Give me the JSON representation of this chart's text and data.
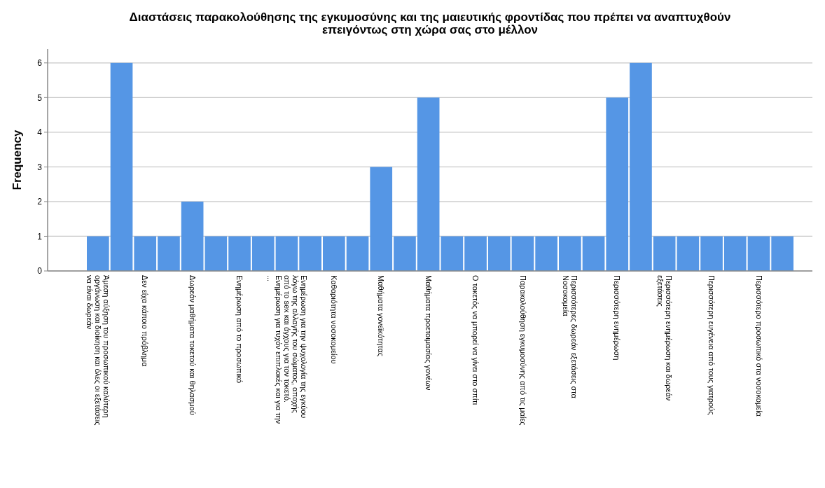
{
  "chart_data": {
    "type": "bar",
    "title": "Διαστάσεις παρακολούθησης της εγκυμοσύνης και της μαιευτικής φροντίδας που πρέπει να αναπτυχθούν\nεπειγόντως στη χώρα σας  στο μέλλον",
    "ylabel": "Frequency",
    "categories": [
      "Άμεση αύξηση του προσωπικού καλύτερη\nοργάνωση και διοίκηση και όλες οι εξετάσεις\nνα είναι δωρεάν",
      null,
      "Δεν είχα κάποιο πρόβλημα",
      null,
      "Δωρεάν μαθήματα τοκετού και θηλασμού",
      null,
      "Ενημέρωση από το προσωπικό",
      null,
      "Ενημέρωση για την ψυχολογία της εγκύου\nλόγω της αλλαγής του σώματος, αποχής\nαπό το sex και άγχους για τον τοκετό.\nΕνημέρωση για τυχόν επιπλοκές και για την\n...",
      null,
      "Καθαριότητα νοσοκομείου",
      null,
      "Μαθήματα γονεϊκότητας",
      null,
      "Μαθήματα προετοιμασίας γονέων",
      null,
      "Ο τοκετός να μπορεί να γίνει στο σπίτι",
      null,
      "Παρακολούθηση εγκυμοσύνης από τις μαίες",
      null,
      "Περισσότερες δωρεάν εξετάσεις στα\nΝοσοκομεία",
      null,
      "Περισσότερη ενημέρωση",
      null,
      "Περισσότερη ενημέρωση και δωρεάν\nεξετάσεις",
      null,
      "Περισσότερη ευγένεια από τους γιατρούς",
      null,
      "Περισσότερο προσωπικό στα νοσοκομεία",
      null
    ],
    "values": [
      1,
      6,
      1,
      1,
      2,
      1,
      1,
      1,
      1,
      1,
      1,
      1,
      3,
      1,
      5,
      1,
      1,
      1,
      1,
      1,
      1,
      1,
      5,
      6,
      1,
      1,
      1,
      1,
      1,
      1
    ],
    "color": "#5596e5",
    "ylim": [
      0,
      6.4
    ],
    "yticks": [
      0,
      1,
      2,
      3,
      4,
      5,
      6
    ],
    "grid": "y"
  }
}
